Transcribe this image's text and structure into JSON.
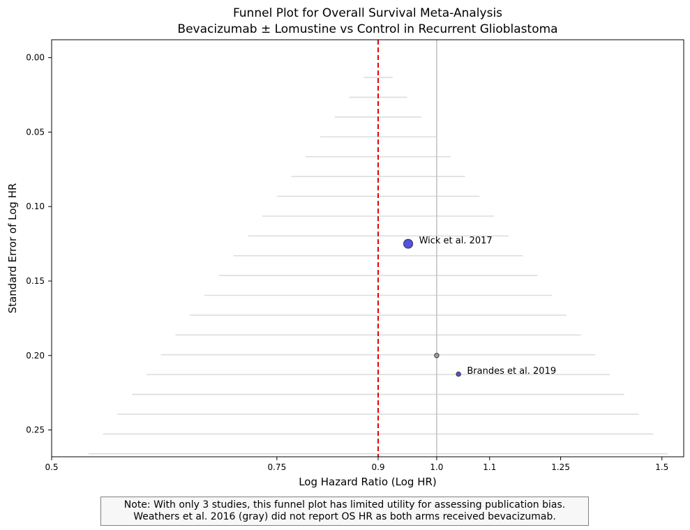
{
  "chart_data": {
    "type": "scatter",
    "title_lines": [
      "Funnel Plot for Overall Survival Meta-Analysis",
      "Bevacizumab ± Lomustine vs Control in Recurrent Glioblastoma"
    ],
    "xlabel": "Log Hazard Ratio (Log HR)",
    "ylabel": "Standard Error of Log HR",
    "x_scale": "log",
    "y_inverted": true,
    "xlim": [
      0.5,
      1.56
    ],
    "ylim": [
      0.268,
      -0.012
    ],
    "x_ticks": [
      0.5,
      0.75,
      0.9,
      1.0,
      1.1,
      1.25,
      1.5
    ],
    "x_tick_labels": [
      "0.5",
      "0.75",
      "0.9",
      "1.0",
      "1.1",
      "1.25",
      "1.5"
    ],
    "y_ticks": [
      0.0,
      0.05,
      0.1,
      0.15,
      0.2,
      0.25
    ],
    "y_tick_labels": [
      "0.00",
      "0.05",
      "0.10",
      "0.15",
      "0.20",
      "0.25"
    ],
    "pooled_hr": 0.9,
    "null_hr": 1.0,
    "funnel": {
      "se_start": 0.0133,
      "se_step": 0.0133,
      "count": 20,
      "z": 1.96
    },
    "points": [
      {
        "study": "Wick et al. 2017",
        "hr": 0.95,
        "se": 0.125,
        "weight": "large",
        "color": "#3f3fe0",
        "label": "Wick et al. 2017"
      },
      {
        "study": "Brandes et al. 2019",
        "hr": 1.04,
        "se": 0.2125,
        "weight": "small",
        "color": "#3f3fe0",
        "label": "Brandes et al. 2019"
      },
      {
        "study": "Weathers et al. 2016",
        "hr": 1.0,
        "se": 0.2,
        "weight": "small",
        "color": "#999999",
        "label": ""
      }
    ],
    "colors": {
      "pooled_line": "#e00000",
      "null_line": "#c0c0c0",
      "funnel_lines": "#dddddd"
    }
  },
  "note": {
    "line1": "Note: With only 3 studies, this funnel plot has limited utility for assessing publication bias.",
    "line2": "Weathers et al. 2016 (gray) did not report OS HR as both arms received bevacizumab."
  }
}
